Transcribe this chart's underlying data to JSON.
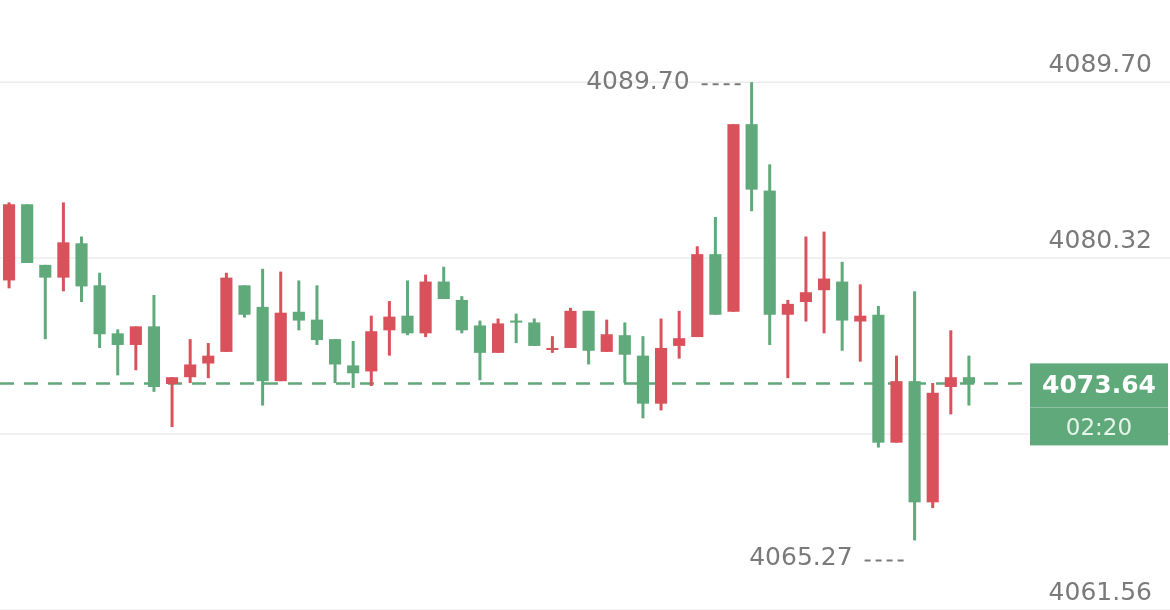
{
  "chart_data": {
    "type": "candlestick",
    "categories": [
      null,
      null,
      null,
      null,
      null,
      null,
      null,
      null,
      null,
      null,
      null,
      null,
      null,
      null,
      null,
      null,
      null,
      null,
      null,
      null,
      null,
      null,
      null,
      null,
      null,
      null,
      null,
      null,
      null,
      null,
      null,
      null,
      null,
      null,
      null,
      null,
      null,
      null,
      null,
      null,
      null,
      null,
      null,
      null,
      null,
      null,
      null,
      null,
      null,
      null,
      null,
      null,
      null,
      null
    ],
    "ohlc": [
      [
        4079.13,
        4083.29,
        4078.71,
        4083.19
      ],
      [
        4083.19,
        4083.19,
        4080.06,
        4080.06
      ],
      [
        4079.96,
        4079.96,
        4076.0,
        4079.28
      ],
      [
        4079.28,
        4083.29,
        4078.55,
        4081.16
      ],
      [
        4081.11,
        4081.47,
        4077.98,
        4078.81
      ],
      [
        4078.87,
        4079.54,
        4075.53,
        4076.26
      ],
      [
        4076.31,
        4076.52,
        4074.07,
        4075.69
      ],
      [
        4075.69,
        4076.68,
        4074.34,
        4076.68
      ],
      [
        4076.68,
        4078.35,
        4073.19,
        4073.45
      ],
      [
        4073.61,
        4073.97,
        4071.31,
        4073.97
      ],
      [
        4073.97,
        4076.0,
        4073.66,
        4074.65
      ],
      [
        4074.7,
        4075.79,
        4073.92,
        4075.12
      ],
      [
        4075.32,
        4079.54,
        4075.32,
        4079.28
      ],
      [
        4078.87,
        4078.87,
        4077.15,
        4077.3
      ],
      [
        4077.72,
        4079.75,
        4072.46,
        4073.76
      ],
      [
        4073.76,
        4079.6,
        4073.76,
        4077.41
      ],
      [
        4077.46,
        4079.13,
        4076.47,
        4076.99
      ],
      [
        4077.04,
        4078.87,
        4075.69,
        4075.95
      ],
      [
        4076.0,
        4076.0,
        4073.66,
        4074.65
      ],
      [
        4074.6,
        4075.9,
        4073.4,
        4074.18
      ],
      [
        4074.28,
        4077.25,
        4073.5,
        4076.42
      ],
      [
        4076.47,
        4078.03,
        4075.12,
        4077.2
      ],
      [
        4077.25,
        4079.13,
        4076.21,
        4076.31
      ],
      [
        4076.31,
        4079.44,
        4076.11,
        4079.07
      ],
      [
        4079.07,
        4079.86,
        4078.14,
        4078.14
      ],
      [
        4078.09,
        4078.29,
        4076.31,
        4076.47
      ],
      [
        4076.73,
        4076.99,
        4073.81,
        4075.27
      ],
      [
        4075.27,
        4077.1,
        4075.27,
        4076.84
      ],
      [
        4076.99,
        4077.36,
        4075.79,
        4076.94
      ],
      [
        4076.89,
        4077.1,
        4075.64,
        4075.64
      ],
      [
        4075.48,
        4076.16,
        4075.27,
        4075.53
      ],
      [
        4075.53,
        4077.67,
        4075.53,
        4077.51
      ],
      [
        4077.51,
        4077.51,
        4074.65,
        4075.38
      ],
      [
        4075.32,
        4077.04,
        4075.32,
        4076.26
      ],
      [
        4076.21,
        4076.89,
        4073.66,
        4075.17
      ],
      [
        4075.12,
        4076.16,
        4071.78,
        4072.56
      ],
      [
        4072.56,
        4077.1,
        4072.2,
        4075.53
      ],
      [
        4075.64,
        4077.51,
        4074.96,
        4076.05
      ],
      [
        4076.11,
        4080.95,
        4076.11,
        4080.53
      ],
      [
        4080.53,
        4082.51,
        4077.3,
        4077.3
      ],
      [
        4077.46,
        4087.46,
        4077.46,
        4087.46
      ],
      [
        4087.46,
        4089.7,
        4082.82,
        4083.97
      ],
      [
        4083.92,
        4085.32,
        4075.69,
        4077.3
      ],
      [
        4077.3,
        4078.09,
        4073.92,
        4077.88
      ],
      [
        4077.98,
        4081.47,
        4076.94,
        4078.5
      ],
      [
        4078.61,
        4081.73,
        4076.31,
        4079.23
      ],
      [
        4079.07,
        4080.12,
        4075.38,
        4076.99
      ],
      [
        4076.94,
        4078.92,
        4074.8,
        4077.25
      ],
      [
        4077.3,
        4077.77,
        4070.22,
        4070.48
      ],
      [
        4070.48,
        4075.12,
        4070.48,
        4073.76
      ],
      [
        4073.76,
        4078.55,
        4065.27,
        4067.3
      ],
      [
        4067.3,
        4073.66,
        4066.99,
        4073.14
      ],
      [
        4073.45,
        4076.47,
        4071.99,
        4073.97
      ],
      [
        4073.97,
        4075.12,
        4072.46,
        4073.64
      ]
    ],
    "colors": [
      "#d9515b",
      "#5fa97a",
      "#5fa97a",
      "#d9515b",
      "#5fa97a",
      "#5fa97a",
      "#5fa97a",
      "#d9515b",
      "#5fa97a",
      "#d9515b",
      "#d9515b",
      "#d9515b",
      "#d9515b",
      "#5fa97a",
      "#5fa97a",
      "#d9515b",
      "#5fa97a",
      "#5fa97a",
      "#5fa97a",
      "#5fa97a",
      "#d9515b",
      "#d9515b",
      "#5fa97a",
      "#d9515b",
      "#5fa97a",
      "#5fa97a",
      "#5fa97a",
      "#d9515b",
      "#5fa97a",
      "#5fa97a",
      "#d9515b",
      "#d9515b",
      "#5fa97a",
      "#d9515b",
      "#5fa97a",
      "#5fa97a",
      "#d9515b",
      "#d9515b",
      "#d9515b",
      "#5fa97a",
      "#d9515b",
      "#5fa97a",
      "#5fa97a",
      "#d9515b",
      "#d9515b",
      "#d9515b",
      "#5fa97a",
      "#d9515b",
      "#5fa97a",
      "#d9515b",
      "#5fa97a",
      "#d9515b",
      "#d9515b",
      "#5fa97a"
    ],
    "ylim": [
      4061.56,
      4094.08
    ],
    "yticks": [
      {
        "value": 4089.7,
        "label": "4089.70"
      },
      {
        "value": 4080.32,
        "label": "4080.32"
      },
      {
        "value": 4070.94,
        "label": null
      },
      {
        "value": 4061.56,
        "label": "4061.56"
      }
    ],
    "grid": "y",
    "tick_labels": "y",
    "ref_lines": [
      {
        "axis": "y",
        "value": 4073.64,
        "label": "4073.64",
        "color": "#5fa97a",
        "line_style": "dashed"
      }
    ],
    "annotations": [
      "4089.70",
      "4065.27",
      "02:20"
    ]
  }
}
